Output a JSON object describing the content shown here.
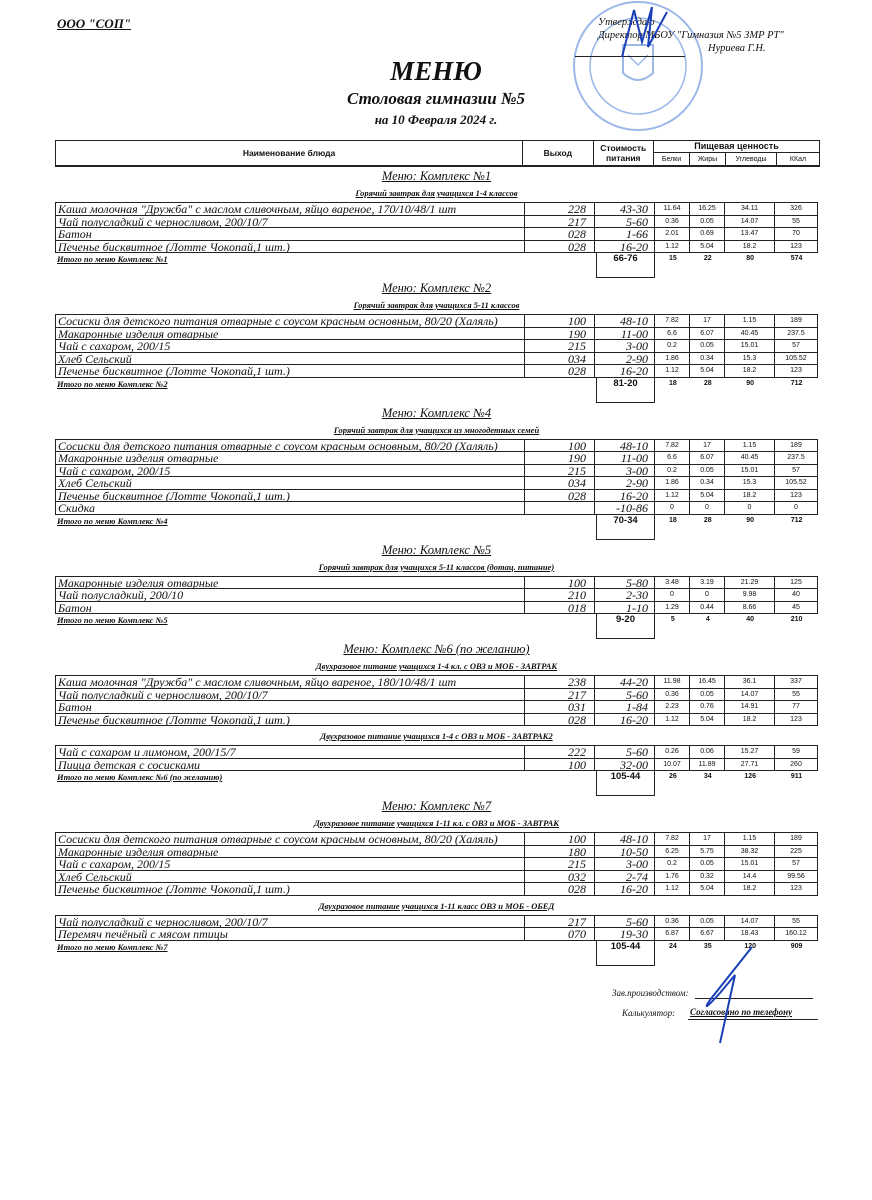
{
  "org": "ООО \"СОП\"",
  "approval": {
    "line1": "Утверждаю",
    "line2": "Директор МБОУ \"Гимназия №5 ЗМР РТ\"",
    "line3": "Нуриева Г.Н."
  },
  "title": "МЕНЮ",
  "subtitle": "Столовая гимназии №5",
  "date": "на 10 Февраля 2024 г.",
  "header": {
    "name": "Наименование блюда",
    "out": "Выход",
    "cost1": "Стоимость",
    "cost2": "питания",
    "nutrition": "Пищевая ценность",
    "protein": "Белки",
    "fat": "Жиры",
    "carbs": "Углеводы",
    "kcal": "ККал"
  },
  "stamp_color": "#4a7fd6",
  "signature_color": "#1a3fb8",
  "sections": [
    {
      "title": "Меню: Комплекс №1",
      "groups": [
        {
          "subtitle": "Горячий завтрак для учащихся 1-4 классов",
          "rows": [
            [
              "Каша молочная \"Дружба\" с маслом сливочным, яйцо вареное, 170/10/48/1 шт",
              "228",
              "43-30",
              "11.64",
              "16.25",
              "34.11",
              "326"
            ],
            [
              "Чай полусладкий с черносливом, 200/10/7",
              "217",
              "5-60",
              "0.36",
              "0.05",
              "14.07",
              "55"
            ],
            [
              "Батон",
              "028",
              "1-66",
              "2.01",
              "0.69",
              "13.47",
              "70"
            ],
            [
              "Печенье бисквитное (Лотте Чокопай,1 шт.)",
              "028",
              "16-20",
              "1.12",
              "5.04",
              "18.2",
              "123"
            ]
          ]
        }
      ],
      "total": [
        "Итого по меню Комплекс №1",
        "66-76",
        "15",
        "22",
        "80",
        "574"
      ]
    },
    {
      "title": "Меню: Комплекс №2",
      "groups": [
        {
          "subtitle": "Горячий завтрак для учащихся 5-11 классов",
          "rows": [
            [
              "Сосиски для детского питания отварные с соусом красным основным, 80/20 (Халяль)",
              "100",
              "48-10",
              "7.82",
              "17",
              "1.15",
              "189"
            ],
            [
              "Макаронные изделия отварные",
              "190",
              "11-00",
              "6.6",
              "6.07",
              "40.45",
              "237.5"
            ],
            [
              "Чай с сахаром, 200/15",
              "215",
              "3-00",
              "0.2",
              "0.05",
              "15.01",
              "57"
            ],
            [
              "Хлеб Сельский",
              "034",
              "2-90",
              "1.86",
              "0.34",
              "15.3",
              "105.52"
            ],
            [
              "Печенье бисквитное (Лотте Чокопай,1 шт.)",
              "028",
              "16-20",
              "1.12",
              "5.04",
              "18.2",
              "123"
            ]
          ]
        }
      ],
      "total": [
        "Итого по меню Комплекс №2",
        "81-20",
        "18",
        "28",
        "90",
        "712"
      ]
    },
    {
      "title": "Меню: Комплекс №4",
      "groups": [
        {
          "subtitle": "Горячий завтрак для учащихся из многодетных семей",
          "rows": [
            [
              "Сосиски для детского питания отварные с соусом красным основным, 80/20 (Халяль)",
              "100",
              "48-10",
              "7.82",
              "17",
              "1.15",
              "189"
            ],
            [
              "Макаронные изделия отварные",
              "190",
              "11-00",
              "6.6",
              "6.07",
              "40.45",
              "237.5"
            ],
            [
              "Чай с сахаром, 200/15",
              "215",
              "3-00",
              "0.2",
              "0.05",
              "15.01",
              "57"
            ],
            [
              "Хлеб Сельский",
              "034",
              "2-90",
              "1.86",
              "0.34",
              "15.3",
              "105.52"
            ],
            [
              "Печенье бисквитное (Лотте Чокопай,1 шт.)",
              "028",
              "16-20",
              "1.12",
              "5.04",
              "18.2",
              "123"
            ],
            [
              "Скидка",
              "",
              "-10-86",
              "0",
              "0",
              "0",
              "0"
            ]
          ]
        }
      ],
      "total": [
        "Итого по меню Комплекс №4",
        "70-34",
        "18",
        "28",
        "90",
        "712"
      ]
    },
    {
      "title": "Меню: Комплекс №5",
      "groups": [
        {
          "subtitle": "Горячий завтрак для учащихся 5-11 классов (дотац. питание)",
          "rows": [
            [
              "Макаронные изделия отварные",
              "100",
              "5-80",
              "3.48",
              "3.19",
              "21.29",
              "125"
            ],
            [
              "Чай полусладкий, 200/10",
              "210",
              "2-30",
              "0",
              "0",
              "9.98",
              "40"
            ],
            [
              "Батон",
              "018",
              "1-10",
              "1.29",
              "0.44",
              "8.66",
              "45"
            ]
          ]
        }
      ],
      "total": [
        "Итого по меню Комплекс №5",
        "9-20",
        "5",
        "4",
        "40",
        "210"
      ]
    },
    {
      "title": "Меню: Комплекс №6 (по желанию)",
      "groups": [
        {
          "subtitle": "Двухразовое питание учащихся 1-4 кл. с ОВЗ и МОБ - ЗАВТРАК",
          "rows": [
            [
              "Каша молочная \"Дружба\" с маслом сливочным, яйцо вареное, 180/10/48/1 шт",
              "238",
              "44-20",
              "11.98",
              "16.45",
              "36.1",
              "337"
            ],
            [
              "Чай полусладкий с черносливом, 200/10/7",
              "217",
              "5-60",
              "0.36",
              "0.05",
              "14.07",
              "55"
            ],
            [
              "Батон",
              "031",
              "1-84",
              "2.23",
              "0.76",
              "14.91",
              "77"
            ],
            [
              "Печенье бисквитное (Лотте Чокопай,1 шт.)",
              "028",
              "16-20",
              "1.12",
              "5.04",
              "18.2",
              "123"
            ]
          ]
        },
        {
          "subtitle": "Двухразовое питание учащихся 1-4 с ОВЗ и МОБ - ЗАВТРАК2",
          "rows": [
            [
              "Чай с сахаром и лимоном, 200/15/7",
              "222",
              "5-60",
              "0.26",
              "0.06",
              "15.27",
              "59"
            ],
            [
              "Пицца детская с сосисками",
              "100",
              "32-00",
              "10.07",
              "11.89",
              "27.71",
              "260"
            ]
          ]
        }
      ],
      "total": [
        "Итого по меню Комплекс №6 (по желанию)",
        "105-44",
        "26",
        "34",
        "126",
        "911"
      ]
    },
    {
      "title": "Меню: Комплекс №7",
      "groups": [
        {
          "subtitle": "Двухразовое питание учащихся 1-11 кл. с  ОВЗ и МОБ - ЗАВТРАК",
          "rows": [
            [
              "Сосиски для детского питания отварные с соусом красным основным, 80/20 (Халяль)",
              "100",
              "48-10",
              "7.82",
              "17",
              "1.15",
              "189"
            ],
            [
              "Макаронные изделия отварные",
              "180",
              "10-50",
              "6.25",
              "5.75",
              "38.32",
              "225"
            ],
            [
              "Чай с сахаром, 200/15",
              "215",
              "3-00",
              "0.2",
              "0.05",
              "15.01",
              "57"
            ],
            [
              "Хлеб Сельский",
              "032",
              "2-74",
              "1.76",
              "0.32",
              "14.4",
              "99.56"
            ],
            [
              "Печенье бисквитное (Лотте Чокопай,1 шт.)",
              "028",
              "16-20",
              "1.12",
              "5.04",
              "18.2",
              "123"
            ]
          ]
        },
        {
          "subtitle": "Двухразовое питание учащихся 1-11 класс ОВЗ и МОБ - ОБЕД",
          "rows": [
            [
              "Чай полусладкий с черносливом, 200/10/7",
              "217",
              "5-60",
              "0.36",
              "0.05",
              "14.07",
              "55"
            ],
            [
              "Перемяч печёный с мясом птицы",
              "070",
              "19-30",
              "6.87",
              "6.67",
              "18.43",
              "160.12"
            ]
          ]
        }
      ],
      "total": [
        "Итого по меню Комплекс №7",
        "105-44",
        "24",
        "35",
        "120",
        "909"
      ]
    }
  ],
  "footer": {
    "production_label": "Зав.производством:",
    "calculator_label": "Калькулятор:",
    "calculator_value": "Согласовано по телефону"
  }
}
